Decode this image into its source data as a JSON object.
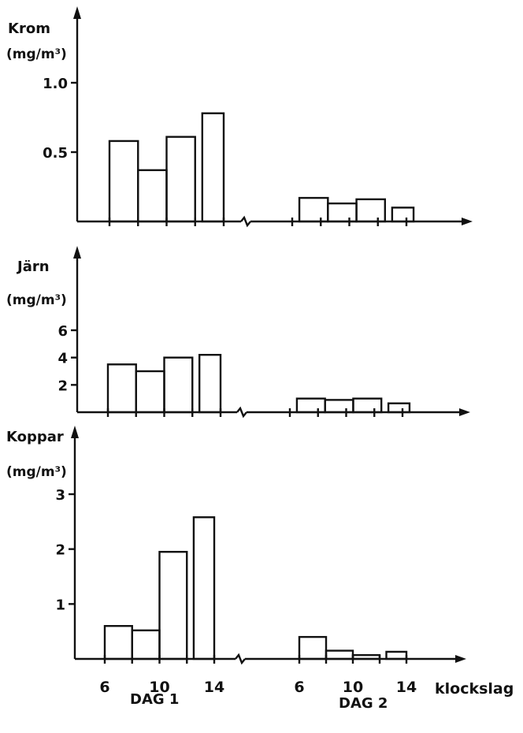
{
  "chart_data": [
    {
      "type": "bar",
      "ylabel": "Krom",
      "yunit": "(mg/m³)",
      "yticks": [
        {
          "v": 0.5,
          "label": "0.5"
        },
        {
          "v": 1.0,
          "label": "1.0"
        }
      ],
      "ymax": 1.0,
      "day1": [
        {
          "from": 6,
          "to": 8,
          "value": 0.58
        },
        {
          "from": 8,
          "to": 10,
          "value": 0.37
        },
        {
          "from": 10,
          "to": 12,
          "value": 0.61
        },
        {
          "from": 12.5,
          "to": 14,
          "value": 0.78
        }
      ],
      "day2": [
        {
          "from": 6.5,
          "to": 8.5,
          "value": 0.17
        },
        {
          "from": 8.5,
          "to": 10.5,
          "value": 0.13
        },
        {
          "from": 10.5,
          "to": 12.5,
          "value": 0.16
        },
        {
          "from": 13,
          "to": 14.5,
          "value": 0.1
        }
      ]
    },
    {
      "type": "bar",
      "ylabel": "Järn",
      "yunit": "(mg/m³)",
      "yticks": [
        {
          "v": 2,
          "label": "2"
        },
        {
          "v": 4,
          "label": "4"
        },
        {
          "v": 6,
          "label": "6"
        }
      ],
      "ymax": 6,
      "day1": [
        {
          "from": 6,
          "to": 8,
          "value": 3.5
        },
        {
          "from": 8,
          "to": 10,
          "value": 3.0
        },
        {
          "from": 10,
          "to": 12,
          "value": 4.0
        },
        {
          "from": 12.5,
          "to": 14,
          "value": 4.2
        }
      ],
      "day2": [
        {
          "from": 6.5,
          "to": 8.5,
          "value": 1.0
        },
        {
          "from": 8.5,
          "to": 10.5,
          "value": 0.9
        },
        {
          "from": 10.5,
          "to": 12.5,
          "value": 1.0
        },
        {
          "from": 13,
          "to": 14.5,
          "value": 0.65
        }
      ]
    },
    {
      "type": "bar",
      "ylabel": "Koppar",
      "yunit": "(mg/m³)",
      "yticks": [
        {
          "v": 1,
          "label": "1"
        },
        {
          "v": 2,
          "label": "2"
        },
        {
          "v": 3,
          "label": "3"
        }
      ],
      "ymax": 3,
      "day1": [
        {
          "from": 6,
          "to": 8,
          "value": 0.6
        },
        {
          "from": 8,
          "to": 10,
          "value": 0.52
        },
        {
          "from": 10,
          "to": 12,
          "value": 1.95
        },
        {
          "from": 12.5,
          "to": 14,
          "value": 2.58
        }
      ],
      "day2": [
        {
          "from": 6,
          "to": 8,
          "value": 0.4
        },
        {
          "from": 8,
          "to": 10,
          "value": 0.15
        },
        {
          "from": 10,
          "to": 12,
          "value": 0.07
        },
        {
          "from": 12.5,
          "to": 14,
          "value": 0.13
        }
      ]
    }
  ],
  "x_axis": {
    "ticks": [
      {
        "day": 1,
        "hour": 6,
        "label": "6"
      },
      {
        "day": 1,
        "hour": 10,
        "label": "10"
      },
      {
        "day": 1,
        "hour": 14,
        "label": "14"
      },
      {
        "day": 2,
        "hour": 6,
        "label": "6"
      },
      {
        "day": 2,
        "hour": 10,
        "label": "10"
      },
      {
        "day": 2,
        "hour": 14,
        "label": "14"
      }
    ],
    "unit": "klockslag",
    "day1_label": "DAG 1",
    "day2_label": "DAG 2"
  }
}
